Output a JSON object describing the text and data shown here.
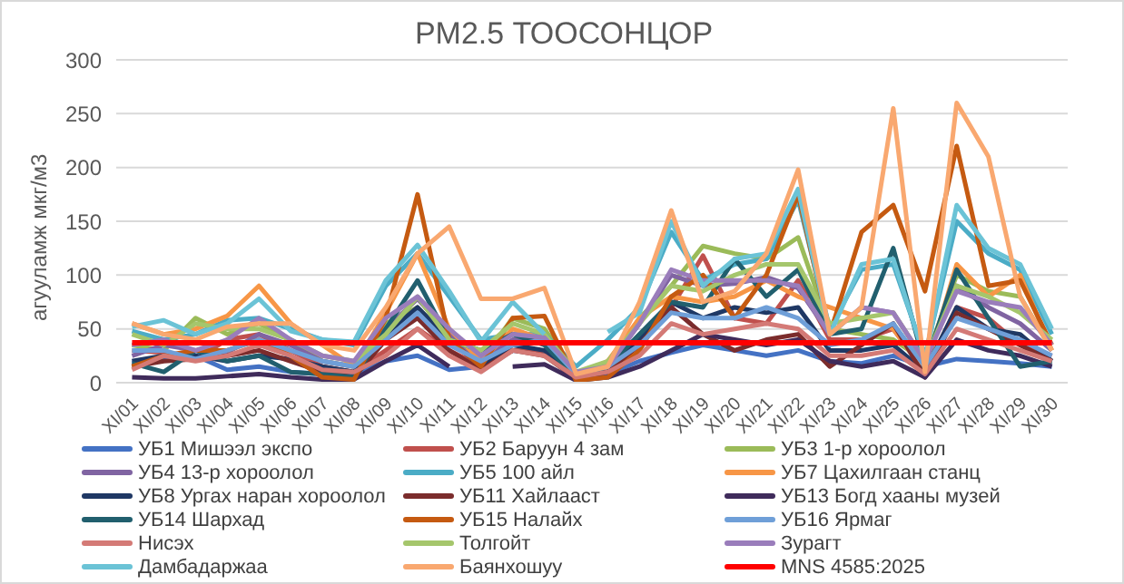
{
  "chart_data": {
    "type": "line",
    "title": "PM2.5 ТООСОНЦОР",
    "ylabel": "агууламж мкг/м3",
    "categories": [
      "XI/01",
      "XI/02",
      "XI/03",
      "XI/04",
      "XI/05",
      "XI/06",
      "XI/07",
      "XI/08",
      "XI/09",
      "XI/10",
      "XI/11",
      "XI/12",
      "XI/13",
      "XI/14",
      "XI/15",
      "XI/16",
      "XI/17",
      "XI/18",
      "XI/19",
      "XI/20",
      "XI/21",
      "XI/22",
      "XI/23",
      "XI/24",
      "XI/25",
      "XI/26",
      "XI/27",
      "XI/28",
      "XI/29",
      "XI/30"
    ],
    "ylim": [
      0,
      300
    ],
    "yticks": [
      0,
      50,
      100,
      150,
      200,
      250,
      300
    ],
    "grid": "y",
    "legend": "bottom",
    "marker": "none",
    "line_style": "solid",
    "series": [
      {
        "name": "УБ1 Мишээл  экспо",
        "color": "#4472c4",
        "values": [
          18,
          22,
          25,
          12,
          15,
          10,
          8,
          8,
          20,
          25,
          12,
          15,
          30,
          28,
          5,
          8,
          20,
          28,
          35,
          30,
          25,
          30,
          20,
          18,
          25,
          15,
          22,
          20,
          18,
          15
        ]
      },
      {
        "name": "УБ2 Баруун 4 зам",
        "color": "#c0504d",
        "values": [
          30,
          28,
          22,
          40,
          45,
          30,
          15,
          10,
          30,
          50,
          30,
          15,
          30,
          30,
          5,
          10,
          40,
          70,
          118,
          60,
          55,
          95,
          40,
          40,
          50,
          10,
          70,
          60,
          35,
          25
        ]
      },
      {
        "name": "УБ3 1-р хороолол",
        "color": "#9bbb59",
        "values": [
          35,
          30,
          60,
          45,
          55,
          40,
          20,
          15,
          55,
          70,
          40,
          20,
          60,
          50,
          8,
          15,
          60,
          90,
          127,
          120,
          115,
          135,
          50,
          45,
          40,
          20,
          100,
          85,
          80,
          30
        ]
      },
      {
        "name": "УБ4 13-р хороолол",
        "color": "#8064a2",
        "values": [
          25,
          35,
          30,
          28,
          45,
          35,
          20,
          15,
          50,
          78,
          45,
          20,
          40,
          40,
          10,
          15,
          55,
          100,
          90,
          92,
          98,
          88,
          45,
          70,
          65,
          20,
          90,
          70,
          55,
          30
        ]
      },
      {
        "name": "УБ5 100 айл",
        "color": "#4bacc6",
        "values": [
          48,
          40,
          45,
          58,
          60,
          50,
          40,
          35,
          90,
          120,
          80,
          40,
          45,
          45,
          15,
          40,
          70,
          140,
          95,
          110,
          115,
          170,
          50,
          105,
          110,
          25,
          150,
          120,
          105,
          45
        ]
      },
      {
        "name": "УБ7 Цахилгаан  станц",
        "color": "#f79646",
        "values": [
          55,
          45,
          50,
          62,
          90,
          55,
          35,
          15,
          65,
          120,
          50,
          20,
          50,
          40,
          5,
          20,
          60,
          80,
          75,
          80,
          95,
          80,
          70,
          60,
          50,
          10,
          110,
          80,
          100,
          30
        ]
      },
      {
        "name": "УБ8 Ургах наран хороолол",
        "color": "#1f3864",
        "values": [
          20,
          25,
          25,
          20,
          25,
          22,
          15,
          10,
          45,
          70,
          40,
          15,
          35,
          30,
          5,
          10,
          40,
          75,
          60,
          70,
          65,
          70,
          30,
          30,
          35,
          10,
          70,
          50,
          45,
          20
        ]
      },
      {
        "name": "УБ11 Хайлааст",
        "color": "#7b2c2c",
        "values": [
          15,
          20,
          22,
          25,
          30,
          20,
          10,
          5,
          40,
          60,
          30,
          12,
          30,
          25,
          4,
          10,
          35,
          70,
          45,
          30,
          40,
          45,
          15,
          35,
          55,
          5,
          65,
          50,
          35,
          20
        ]
      },
      {
        "name": "УБ13 Богд хааны музей",
        "color": "#3f2b5b",
        "values": [
          5,
          4,
          4,
          6,
          8,
          5,
          3,
          3,
          20,
          35,
          15,
          null,
          15,
          17,
          2,
          5,
          15,
          30,
          45,
          40,
          35,
          40,
          20,
          15,
          20,
          5,
          40,
          30,
          25,
          15
        ]
      },
      {
        "name": "УБ14 Шархад",
        "color": "#215f6e",
        "values": [
          18,
          10,
          30,
          20,
          25,
          10,
          8,
          5,
          50,
          95,
          40,
          30,
          45,
          35,
          5,
          15,
          45,
          75,
          70,
          115,
          80,
          105,
          45,
          50,
          125,
          15,
          105,
          60,
          15,
          20
        ]
      },
      {
        "name": "УБ15 Налайх",
        "color": "#c55a11",
        "values": [
          15,
          25,
          30,
          30,
          40,
          25,
          5,
          3,
          60,
          175,
          40,
          15,
          60,
          62,
          2,
          5,
          30,
          80,
          100,
          60,
          100,
          175,
          45,
          140,
          165,
          85,
          220,
          90,
          95,
          35
        ]
      },
      {
        "name": "УБ16 Ярмаг",
        "color": "#6f9fd8",
        "values": [
          30,
          30,
          22,
          30,
          40,
          30,
          20,
          15,
          40,
          65,
          35,
          20,
          35,
          40,
          8,
          15,
          35,
          65,
          60,
          60,
          70,
          60,
          35,
          40,
          55,
          15,
          60,
          50,
          40,
          25
        ]
      },
      {
        "name": "Нисэх",
        "color": "#d47a76",
        "values": [
          12,
          25,
          20,
          25,
          35,
          25,
          12,
          10,
          25,
          50,
          25,
          10,
          30,
          25,
          5,
          10,
          25,
          55,
          45,
          50,
          55,
          50,
          25,
          25,
          30,
          8,
          50,
          40,
          30,
          20
        ]
      },
      {
        "name": "Толгойт",
        "color": "#a5c66c",
        "values": [
          45,
          35,
          55,
          50,
          50,
          40,
          25,
          20,
          45,
          80,
          40,
          30,
          55,
          45,
          10,
          20,
          55,
          90,
          85,
          100,
          110,
          110,
          55,
          60,
          65,
          20,
          90,
          80,
          65,
          40
        ]
      },
      {
        "name": "Зурагт",
        "color": "#9a7dbb",
        "values": [
          35,
          40,
          30,
          40,
          60,
          40,
          25,
          20,
          60,
          80,
          50,
          25,
          45,
          42,
          10,
          15,
          55,
          105,
          95,
          95,
          95,
          90,
          45,
          70,
          65,
          20,
          85,
          75,
          70,
          35
        ]
      },
      {
        "name": "Дамбадаржаа",
        "color": "#6bc3d6",
        "values": [
          52,
          58,
          45,
          55,
          78,
          48,
          40,
          38,
          95,
          128,
          85,
          38,
          75,
          45,
          null,
          47,
          65,
          150,
          90,
          115,
          120,
          180,
          45,
          110,
          115,
          22,
          165,
          125,
          110,
          50
        ]
      },
      {
        "name": "Баянхошуу",
        "color": "#f9a870",
        "values": [
          55,
          45,
          40,
          52,
          55,
          55,
          35,
          30,
          70,
          120,
          145,
          78,
          78,
          88,
          8,
          15,
          75,
          160,
          75,
          85,
          120,
          198,
          45,
          70,
          255,
          10,
          260,
          210,
          80,
          30
        ]
      },
      {
        "name": "MNS 4585:2025",
        "color": "#ff0000",
        "values": [
          37,
          37,
          37,
          37,
          37,
          37,
          37,
          37,
          37,
          37,
          37,
          37,
          37,
          37,
          37,
          37,
          37,
          37,
          37,
          37,
          37,
          37,
          37,
          37,
          37,
          37,
          37,
          37,
          37,
          37
        ]
      }
    ]
  }
}
